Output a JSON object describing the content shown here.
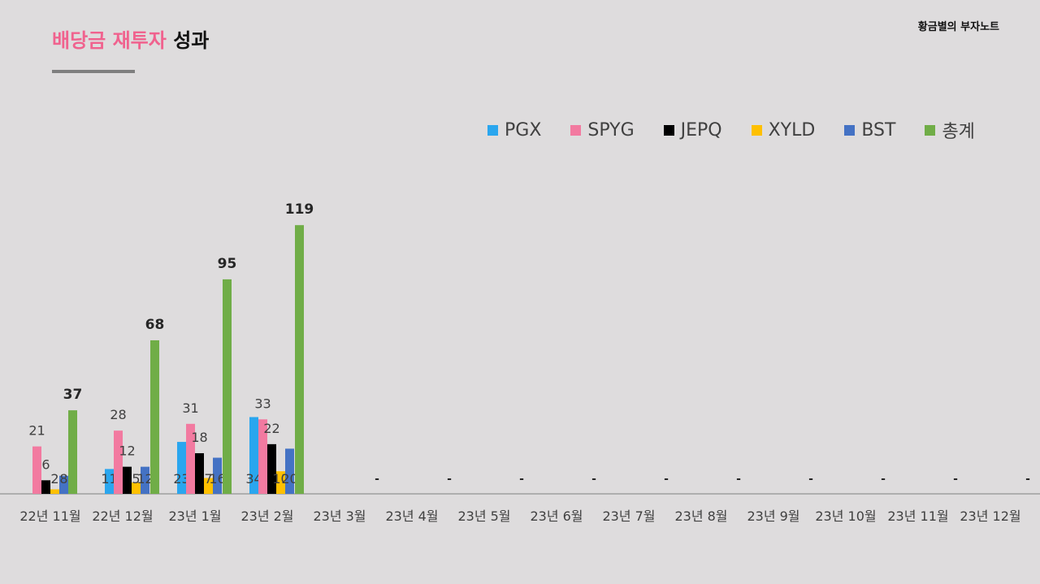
{
  "header": {
    "title_highlight": "배당금 재투자",
    "title_rest": "성과",
    "brand": "황금별의 부자노트"
  },
  "colors": {
    "PGX": "#2aa6ee",
    "SPYG": "#f27aa0",
    "JEPQ": "#000000",
    "XYLD": "#ffc000",
    "BST": "#4472c4",
    "총계": "#70ad47"
  },
  "chart_data": {
    "type": "bar",
    "title": "배당금 재투자 성과",
    "xlabel": "",
    "ylabel": "",
    "categories": [
      "22년 11월",
      "22년 12월",
      "23년 1월",
      "23년 2월",
      "23년 3월",
      "23년 4월",
      "23년 5월",
      "23년 6월",
      "23년 7월",
      "23년 8월",
      "23년 9월",
      "23년 10월",
      "23년 11월",
      "23년 12월"
    ],
    "series": [
      {
        "name": "PGX",
        "values": [
          null,
          11,
          23,
          34,
          null,
          null,
          null,
          null,
          null,
          null,
          null,
          null,
          null,
          null
        ]
      },
      {
        "name": "SPYG",
        "values": [
          21,
          28,
          31,
          33,
          null,
          null,
          null,
          null,
          null,
          null,
          null,
          null,
          null,
          null
        ]
      },
      {
        "name": "JEPQ",
        "values": [
          6,
          12,
          18,
          22,
          null,
          null,
          null,
          null,
          null,
          null,
          null,
          null,
          null,
          null
        ]
      },
      {
        "name": "XYLD",
        "values": [
          2,
          5,
          7,
          10,
          null,
          null,
          null,
          null,
          null,
          null,
          null,
          null,
          null,
          null
        ]
      },
      {
        "name": "BST",
        "values": [
          8,
          12,
          16,
          20,
          null,
          null,
          null,
          null,
          null,
          null,
          null,
          null,
          null,
          null
        ]
      },
      {
        "name": "총계",
        "values": [
          37,
          68,
          95,
          119,
          null,
          null,
          null,
          null,
          null,
          null,
          null,
          null,
          null,
          null
        ]
      }
    ],
    "empty_marker": "-",
    "legend_position": "top-right",
    "grid": false
  }
}
